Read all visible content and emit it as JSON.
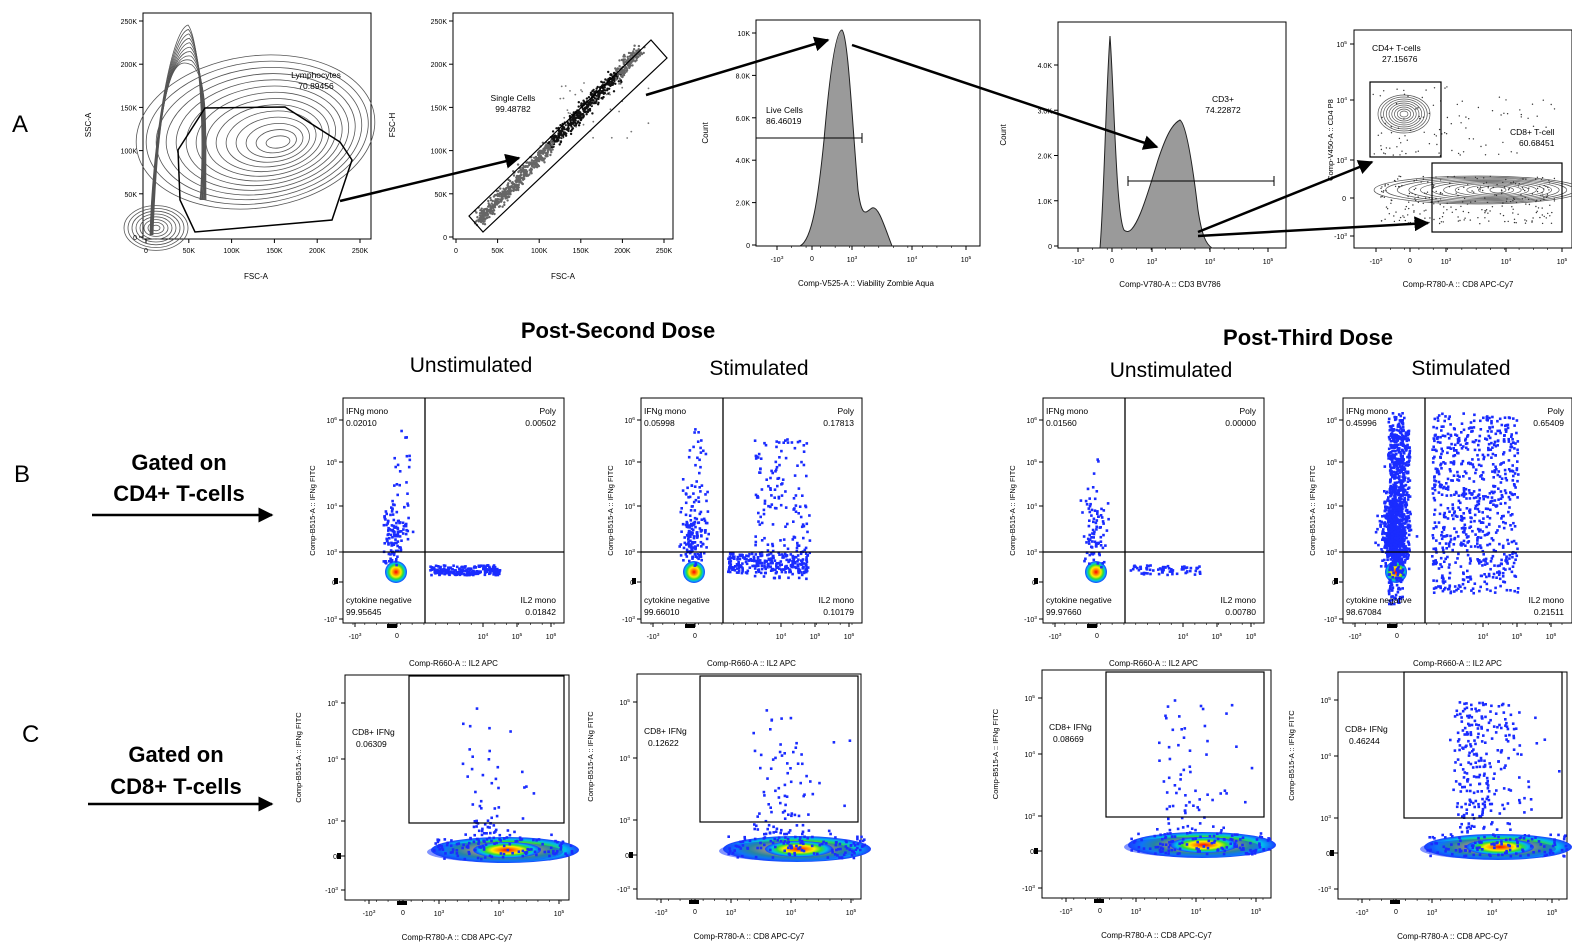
{
  "row_letters": [
    "A",
    "B",
    "C"
  ],
  "section_titles": {
    "second": {
      "title": "Post-Second Dose",
      "unstim": "Unstimulated",
      "stim": "Stimulated"
    },
    "third": {
      "title": "Post-Third Dose",
      "unstim": "Unstimulated",
      "stim": "Stimulated"
    }
  },
  "gate_labels": {
    "cd4": [
      "Gated on",
      "CD4+ T-cells"
    ],
    "cd8": [
      "Gated on",
      "CD8+ T-cells"
    ]
  },
  "row_a": {
    "p1": {
      "xlabel": "FSC-A",
      "ylabel": "SSC-A",
      "xticks": [
        "0",
        "50K",
        "100K",
        "150K",
        "200K",
        "250K"
      ],
      "yticks": [
        "0",
        "50K",
        "100K",
        "150K",
        "200K",
        "250K"
      ],
      "gate": "Lymphocytes",
      "gate_value": "70.89456"
    },
    "p2": {
      "xlabel": "FSC-A",
      "ylabel": "FSC-H",
      "xticks": [
        "0",
        "50K",
        "100K",
        "150K",
        "200K",
        "250K"
      ],
      "yticks": [
        "0",
        "50K",
        "100K",
        "150K",
        "200K",
        "250K"
      ],
      "gate": "Single Cells",
      "gate_value": "99.48782"
    },
    "p3": {
      "xlabel": "Comp-V525-A :: Viability Zombie Aqua",
      "ylabel": "Count",
      "yticks": [
        "0",
        "2.0K",
        "4.0K",
        "6.0K",
        "8.0K",
        "10K"
      ],
      "gate": "Live Cells",
      "gate_value": "86.46019"
    },
    "p4": {
      "xlabel": "Comp-V780-A :: CD3 BV786",
      "ylabel": "Count",
      "yticks": [
        "0",
        "1.0K",
        "2.0K",
        "3.0K",
        "4.0K"
      ],
      "gate": "CD3+",
      "gate_value": "74.22872"
    },
    "p5": {
      "xlabel": "Comp-R780-A :: CD8 APC-Cy7",
      "ylabel": "Comp-V450-A :: CD4 P8",
      "gate_cd4": "CD4+ T-cells",
      "gate_cd4_value": "27.15676",
      "gate_cd8": "CD8+ T-cell",
      "gate_cd8_value": "60.68451"
    }
  },
  "row_b": {
    "xlabel": "Comp-R660-A :: IL2 APC",
    "ylabel": "Comp-B515-A :: IFNg FITC",
    "q_labels": {
      "ifng": "IFNg mono",
      "poly": "Poly",
      "neg": "cytokine negative",
      "il2": "IL2 mono"
    },
    "panels": [
      {
        "ifng": "0.02010",
        "poly": "0.00502",
        "neg": "99.95645",
        "il2": "0.01842"
      },
      {
        "ifng": "0.05998",
        "poly": "0.17813",
        "neg": "99.66010",
        "il2": "0.10179"
      },
      {
        "ifng": "0.01560",
        "poly": "0.00000",
        "neg": "99.97660",
        "il2": "0.00780"
      },
      {
        "ifng": "0.45996",
        "poly": "0.65409",
        "neg": "98.67084",
        "il2": "0.21511"
      }
    ]
  },
  "row_c": {
    "xlabel": "Comp-R780-A :: CD8 APC-Cy7",
    "ylabel": "Comp-B515-A :: IFNg FITC",
    "gate_label": "CD8+ IFNg",
    "panels": [
      {
        "value": "0.06309"
      },
      {
        "value": "0.12622"
      },
      {
        "value": "0.08669"
      },
      {
        "value": "0.46244"
      }
    ]
  },
  "axis_ticks": {
    "zero": "0",
    "neg3": "-10",
    "e": "10",
    "exps": [
      "3",
      "4",
      "5",
      "6"
    ]
  },
  "chart_data": {
    "type": "scatter",
    "panels": [
      {
        "id": "A-FSC-SSC",
        "kind": "contour",
        "x": "FSC-A",
        "y": "SSC-A",
        "gate": "Lymphocytes",
        "percent": 70.89456
      },
      {
        "id": "A-FSC-FSCH",
        "kind": "density",
        "x": "FSC-A",
        "y": "FSC-H",
        "gate": "Single Cells",
        "percent": 99.48782
      },
      {
        "id": "A-Viability",
        "kind": "histogram",
        "x": "Comp-V525-A :: Viability Zombie Aqua",
        "y": "Count",
        "gate": "Live Cells",
        "percent": 86.46019
      },
      {
        "id": "A-CD3",
        "kind": "histogram",
        "x": "Comp-V780-A :: CD3 BV786",
        "y": "Count",
        "gate": "CD3+",
        "percent": 74.22872
      },
      {
        "id": "A-CD4-CD8",
        "kind": "contour",
        "x": "Comp-R780-A :: CD8 APC-Cy7",
        "y": "Comp-V450-A :: CD4 P8",
        "gates": [
          {
            "name": "CD4+ T-cells",
            "percent": 27.15676
          },
          {
            "name": "CD8+ T-cell",
            "percent": 60.68451
          }
        ]
      },
      {
        "id": "B-2nd-unstim",
        "quadrants": {
          "IFNg mono": 0.0201,
          "Poly": 0.00502,
          "cytokine negative": 99.95645,
          "IL2 mono": 0.01842
        }
      },
      {
        "id": "B-2nd-stim",
        "quadrants": {
          "IFNg mono": 0.05998,
          "Poly": 0.17813,
          "cytokine negative": 99.6601,
          "IL2 mono": 0.10179
        }
      },
      {
        "id": "B-3rd-unstim",
        "quadrants": {
          "IFNg mono": 0.0156,
          "Poly": 0.0,
          "cytokine negative": 99.9766,
          "IL2 mono": 0.0078
        }
      },
      {
        "id": "B-3rd-stim",
        "quadrants": {
          "IFNg mono": 0.45996,
          "Poly": 0.65409,
          "cytokine negative": 98.67084,
          "IL2 mono": 0.21511
        }
      },
      {
        "id": "C-2nd-unstim",
        "gate": "CD8+ IFNg",
        "percent": 0.06309
      },
      {
        "id": "C-2nd-stim",
        "gate": "CD8+ IFNg",
        "percent": 0.12622
      },
      {
        "id": "C-3rd-unstim",
        "gate": "CD8+ IFNg",
        "percent": 0.08669
      },
      {
        "id": "C-3rd-stim",
        "gate": "CD8+ IFNg",
        "percent": 0.46244
      }
    ]
  }
}
